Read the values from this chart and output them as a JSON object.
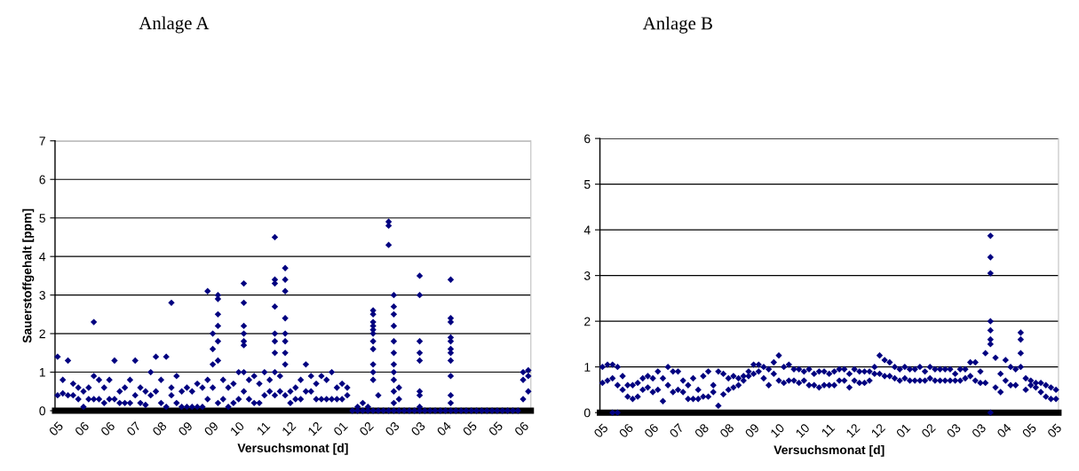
{
  "chart_data": [
    {
      "type": "scatter",
      "title": "Anlage A",
      "xlabel": "Versuchsmonat [d]",
      "ylabel": "Sauerstoffgehalt [ppm]",
      "marker": "diamond",
      "grid": "y",
      "ylim": [
        0,
        7
      ],
      "yticks": [
        0,
        1,
        2,
        3,
        4,
        5,
        6,
        7
      ],
      "categories": [
        "05",
        null,
        null,
        null,
        null,
        "06",
        null,
        null,
        null,
        null,
        "06",
        null,
        null,
        null,
        null,
        "07",
        null,
        null,
        null,
        null,
        "08",
        null,
        null,
        null,
        null,
        "09",
        null,
        null,
        null,
        null,
        "09",
        null,
        null,
        null,
        null,
        "10",
        null,
        null,
        null,
        null,
        "11",
        null,
        null,
        null,
        null,
        "12",
        null,
        null,
        null,
        null,
        "12",
        null,
        null,
        null,
        null,
        "01",
        null,
        null,
        null,
        null,
        "02",
        null,
        null,
        null,
        null,
        "03",
        null,
        null,
        null,
        null,
        "03",
        null,
        null,
        null,
        null,
        "04",
        null,
        null,
        null,
        null,
        "05",
        null,
        null,
        null,
        null,
        "05",
        null,
        null,
        null,
        null,
        "06",
        null
      ],
      "series": [
        {
          "color": "#000080",
          "values": [
            0.4,
            0.45,
            0.4,
            0.4,
            0.3,
            0.1,
            0.3,
            0.3,
            0.3,
            0.2,
            0.3,
            0.3,
            0.2,
            0.2,
            0.2,
            0.4,
            0.2,
            0.15,
            0.4,
            0.5,
            0.2,
            0.1,
            0.4,
            0.2,
            0.1,
            0.1,
            0.1,
            0.1,
            0.1,
            0.3,
            0.6,
            0.2,
            0.3,
            0.1,
            0.2,
            0.3,
            0.5,
            0.3,
            0.2,
            0.2,
            0.4,
            0.5,
            0.4,
            0.5,
            0.4,
            0.2,
            0.3,
            0.3,
            0.5,
            0.5,
            0.3,
            0.3,
            0.3,
            0.3,
            0.3,
            0.3,
            0.4,
            0,
            0,
            0,
            0,
            0,
            0,
            0,
            0,
            0,
            0,
            0,
            0,
            0,
            0,
            0,
            0,
            0,
            0,
            0,
            0,
            0,
            0,
            0,
            0,
            0,
            0,
            0,
            0,
            0,
            0,
            0,
            0,
            0,
            0.3,
            0.5
          ]
        },
        {
          "color": "#000080",
          "values": [
            1.4,
            0.8,
            1.3,
            0.7,
            0.6,
            0.5,
            0.6,
            0.9,
            0.8,
            0.6,
            0.8,
            1.3,
            0.5,
            0.6,
            0.8,
            1.3,
            0.6,
            0.5,
            1.0,
            1.4,
            0.8,
            1.4,
            0.6,
            0.9,
            0.5,
            0.6,
            0.5,
            0.7,
            0.6,
            0.8,
            2.0,
            1.3,
            0.8,
            0.6,
            0.7,
            1.0,
            1.0,
            0.8,
            0.9,
            0.7,
            1.0,
            0.8,
            1.0,
            0.9,
            1.2,
            0.5,
            0.6,
            0.8,
            1.2,
            0.9,
            0.7,
            0.9,
            0.8,
            1.0,
            0.6,
            0.7,
            0.6,
            null,
            0.1,
            0.2,
            0.1,
            1.6,
            0.4,
            null,
            4.3,
            1.8,
            0.6,
            null,
            null,
            null,
            3.5,
            null,
            null,
            null,
            null,
            null,
            3.4,
            null,
            null,
            null,
            null,
            null,
            null,
            null,
            null,
            null,
            null,
            null,
            null,
            null,
            1.0,
            1.05
          ]
        },
        {
          "color": "#000080",
          "values": [
            null,
            null,
            null,
            null,
            null,
            null,
            null,
            2.3,
            null,
            null,
            null,
            null,
            null,
            null,
            null,
            null,
            null,
            null,
            null,
            null,
            null,
            null,
            2.8,
            null,
            null,
            null,
            null,
            null,
            null,
            3.1,
            1.6,
            3.0,
            null,
            null,
            null,
            null,
            3.3,
            null,
            null,
            null,
            null,
            null,
            4.5,
            null,
            3.7,
            null,
            null,
            null,
            null,
            null,
            null,
            null,
            null,
            null,
            null,
            null,
            null,
            null,
            null,
            null,
            null,
            2.6,
            null,
            null,
            4.9,
            3.0,
            0.3,
            null,
            null,
            null,
            3.0,
            null,
            null,
            null,
            null,
            null,
            2.4,
            null,
            null,
            null,
            null,
            null,
            null,
            null,
            null,
            null,
            null,
            null,
            null,
            null,
            0.8,
            0.9
          ]
        },
        {
          "color": "#000080",
          "values": [
            null,
            null,
            null,
            null,
            null,
            null,
            null,
            null,
            null,
            null,
            null,
            null,
            null,
            null,
            null,
            null,
            null,
            null,
            null,
            null,
            null,
            null,
            null,
            null,
            null,
            null,
            null,
            null,
            null,
            null,
            1.2,
            2.9,
            null,
            null,
            null,
            null,
            2.8,
            null,
            null,
            null,
            null,
            null,
            3.4,
            null,
            3.4,
            null,
            null,
            null,
            null,
            null,
            null,
            null,
            null,
            null,
            null,
            null,
            null,
            null,
            null,
            null,
            null,
            2.5,
            null,
            null,
            4.8,
            2.7,
            null,
            null,
            null,
            null,
            1.8,
            null,
            null,
            null,
            null,
            null,
            2.3,
            null,
            null,
            null,
            null,
            null,
            null,
            null,
            null,
            null,
            null,
            null,
            null,
            null,
            null,
            null
          ]
        },
        {
          "color": "#000080",
          "values": [
            null,
            null,
            null,
            null,
            null,
            null,
            null,
            null,
            null,
            null,
            null,
            null,
            null,
            null,
            null,
            null,
            null,
            null,
            null,
            null,
            null,
            null,
            null,
            null,
            null,
            null,
            null,
            null,
            null,
            null,
            null,
            2.5,
            null,
            null,
            null,
            null,
            2.2,
            null,
            null,
            null,
            null,
            null,
            3.3,
            null,
            3.1,
            null,
            null,
            null,
            null,
            null,
            null,
            null,
            null,
            null,
            null,
            null,
            null,
            null,
            null,
            null,
            null,
            2.3,
            null,
            null,
            null,
            2.5,
            null,
            null,
            null,
            null,
            1.5,
            null,
            null,
            null,
            null,
            null,
            1.9,
            null,
            null,
            null,
            null,
            null,
            null,
            null,
            null,
            null,
            null,
            null,
            null,
            null,
            null,
            null
          ]
        },
        {
          "color": "#000080",
          "values": [
            null,
            null,
            null,
            null,
            null,
            null,
            null,
            null,
            null,
            null,
            null,
            null,
            null,
            null,
            null,
            null,
            null,
            null,
            null,
            null,
            null,
            null,
            null,
            null,
            null,
            null,
            null,
            null,
            null,
            null,
            null,
            2.2,
            null,
            null,
            null,
            null,
            2.0,
            null,
            null,
            null,
            null,
            null,
            2.7,
            null,
            2.4,
            null,
            null,
            null,
            null,
            null,
            null,
            null,
            null,
            null,
            null,
            null,
            null,
            null,
            null,
            null,
            null,
            2.2,
            null,
            null,
            null,
            2.2,
            null,
            null,
            null,
            null,
            1.3,
            null,
            null,
            null,
            null,
            null,
            1.8,
            null,
            null,
            null,
            null,
            null,
            null,
            null,
            null,
            null,
            null,
            null,
            null,
            null,
            null,
            null
          ]
        },
        {
          "color": "#000080",
          "values": [
            null,
            null,
            null,
            null,
            null,
            null,
            null,
            null,
            null,
            null,
            null,
            null,
            null,
            null,
            null,
            null,
            null,
            null,
            null,
            null,
            null,
            null,
            null,
            null,
            null,
            null,
            null,
            null,
            null,
            null,
            null,
            1.8,
            null,
            null,
            null,
            null,
            1.8,
            null,
            null,
            null,
            null,
            null,
            2.0,
            null,
            2.0,
            null,
            null,
            null,
            null,
            null,
            null,
            null,
            null,
            null,
            null,
            null,
            null,
            null,
            null,
            null,
            null,
            2.1,
            null,
            null,
            null,
            1.5,
            null,
            null,
            null,
            null,
            0.5,
            null,
            null,
            null,
            null,
            null,
            1.6,
            null,
            null,
            null,
            null,
            null,
            null,
            null,
            null,
            null,
            null,
            null,
            null,
            null,
            null,
            null
          ]
        },
        {
          "color": "#000080",
          "values": [
            null,
            null,
            null,
            null,
            null,
            null,
            null,
            null,
            null,
            null,
            null,
            null,
            null,
            null,
            null,
            null,
            null,
            null,
            null,
            null,
            null,
            null,
            null,
            null,
            null,
            null,
            null,
            null,
            null,
            null,
            null,
            null,
            null,
            null,
            null,
            null,
            1.7,
            null,
            null,
            null,
            null,
            null,
            1.8,
            null,
            1.8,
            null,
            null,
            null,
            null,
            null,
            null,
            null,
            null,
            null,
            null,
            null,
            null,
            null,
            null,
            null,
            null,
            2.0,
            null,
            null,
            null,
            1.2,
            null,
            null,
            null,
            null,
            0.4,
            null,
            null,
            null,
            null,
            null,
            1.5,
            null,
            null,
            null,
            null,
            null,
            null,
            null,
            null,
            null,
            null,
            null,
            null,
            null,
            null,
            null
          ]
        },
        {
          "color": "#000080",
          "values": [
            null,
            null,
            null,
            null,
            null,
            null,
            null,
            null,
            null,
            null,
            null,
            null,
            null,
            null,
            null,
            null,
            null,
            null,
            null,
            null,
            null,
            null,
            null,
            null,
            null,
            null,
            null,
            null,
            null,
            null,
            null,
            null,
            null,
            null,
            null,
            null,
            null,
            null,
            null,
            null,
            null,
            null,
            1.5,
            null,
            1.5,
            null,
            null,
            null,
            null,
            null,
            null,
            null,
            null,
            null,
            null,
            null,
            null,
            null,
            null,
            null,
            null,
            1.8,
            null,
            null,
            null,
            1.0,
            null,
            null,
            null,
            null,
            0.1,
            null,
            null,
            null,
            null,
            null,
            1.3,
            null,
            null,
            null,
            null,
            null,
            null,
            null,
            null,
            null,
            null,
            null,
            null,
            null,
            null,
            null
          ]
        },
        {
          "color": "#000080",
          "values": [
            null,
            null,
            null,
            null,
            null,
            null,
            null,
            null,
            null,
            null,
            null,
            null,
            null,
            null,
            null,
            null,
            null,
            null,
            null,
            null,
            null,
            null,
            null,
            null,
            null,
            null,
            null,
            null,
            null,
            null,
            null,
            null,
            null,
            null,
            null,
            null,
            null,
            null,
            null,
            null,
            null,
            null,
            null,
            null,
            null,
            null,
            null,
            null,
            null,
            null,
            null,
            null,
            null,
            null,
            null,
            null,
            null,
            null,
            null,
            null,
            null,
            1.2,
            null,
            null,
            null,
            0.8,
            null,
            null,
            null,
            null,
            null,
            null,
            null,
            null,
            null,
            null,
            0.9,
            null,
            null,
            null,
            null,
            null,
            null,
            null,
            null,
            null,
            null,
            null,
            null,
            null,
            null,
            null
          ]
        },
        {
          "color": "#000080",
          "values": [
            null,
            null,
            null,
            null,
            null,
            null,
            null,
            null,
            null,
            null,
            null,
            null,
            null,
            null,
            null,
            null,
            null,
            null,
            null,
            null,
            null,
            null,
            null,
            null,
            null,
            null,
            null,
            null,
            null,
            null,
            null,
            null,
            null,
            null,
            null,
            null,
            null,
            null,
            null,
            null,
            null,
            null,
            null,
            null,
            null,
            null,
            null,
            null,
            null,
            null,
            null,
            null,
            null,
            null,
            null,
            null,
            null,
            null,
            null,
            null,
            null,
            1.0,
            null,
            null,
            null,
            0.5,
            null,
            null,
            null,
            null,
            null,
            null,
            null,
            null,
            null,
            null,
            0.4,
            null,
            null,
            null,
            null,
            null,
            null,
            null,
            null,
            null,
            null,
            null,
            null,
            null,
            null,
            null
          ]
        },
        {
          "color": "#000080",
          "values": [
            null,
            null,
            null,
            null,
            null,
            null,
            null,
            null,
            null,
            null,
            null,
            null,
            null,
            null,
            null,
            null,
            null,
            null,
            null,
            null,
            null,
            null,
            null,
            null,
            null,
            null,
            null,
            null,
            null,
            null,
            null,
            null,
            null,
            null,
            null,
            null,
            null,
            null,
            null,
            null,
            null,
            null,
            null,
            null,
            null,
            null,
            null,
            null,
            null,
            null,
            null,
            null,
            null,
            null,
            null,
            null,
            null,
            null,
            null,
            null,
            null,
            0.8,
            null,
            null,
            null,
            0.2,
            null,
            null,
            null,
            null,
            null,
            null,
            null,
            null,
            null,
            null,
            0.2,
            null,
            null,
            null,
            null,
            null,
            null,
            null,
            null,
            null,
            null,
            null,
            null,
            null,
            null,
            null
          ]
        }
      ]
    },
    {
      "type": "scatter",
      "title": "Anlage B",
      "xlabel": "Versuchsmonat [d]",
      "marker": "diamond",
      "grid": "y",
      "ylim": [
        0,
        6
      ],
      "yticks": [
        0,
        1,
        2,
        3,
        4,
        5,
        6
      ],
      "categories": [
        "05",
        null,
        null,
        null,
        null,
        "06",
        null,
        null,
        null,
        null,
        "06",
        null,
        null,
        null,
        null,
        "07",
        null,
        null,
        null,
        null,
        "08",
        null,
        null,
        null,
        null,
        "08",
        null,
        null,
        null,
        null,
        "09",
        null,
        null,
        null,
        null,
        "10",
        null,
        null,
        null,
        null,
        "10",
        null,
        null,
        null,
        null,
        "11",
        null,
        null,
        null,
        null,
        "12",
        null,
        null,
        null,
        null,
        "12",
        null,
        null,
        null,
        null,
        "01",
        null,
        null,
        null,
        null,
        "02",
        null,
        null,
        null,
        null,
        "03",
        null,
        null,
        null,
        null,
        "03",
        null,
        null,
        null,
        null,
        "04",
        null,
        null,
        null,
        null,
        "05",
        null,
        null,
        null,
        null,
        "05"
      ],
      "series": [
        {
          "color": "#000080",
          "values": [
            0.65,
            0.7,
            0.75,
            0.6,
            0.5,
            0.35,
            0.3,
            0.35,
            0.5,
            0.55,
            0.45,
            0.5,
            0.25,
            0.6,
            0.45,
            0.5,
            0.45,
            0.3,
            0.3,
            0.3,
            0.35,
            0.35,
            0.45,
            0.15,
            0.4,
            0.5,
            0.55,
            0.6,
            0.7,
            0.8,
            0.85,
            0.9,
            0.75,
            0.6,
            0.85,
            0.7,
            0.65,
            0.7,
            0.7,
            0.65,
            0.7,
            0.6,
            0.6,
            0.55,
            0.6,
            0.6,
            0.6,
            0.7,
            0.7,
            0.55,
            0.7,
            0.65,
            0.65,
            0.7,
            0.85,
            0.85,
            0.8,
            0.8,
            0.75,
            0.7,
            0.75,
            0.7,
            0.7,
            0.7,
            0.7,
            0.75,
            0.7,
            0.7,
            0.7,
            0.7,
            0.7,
            0.7,
            0.75,
            0.8,
            0.7,
            0.65,
            0.65,
            1.5,
            0.55,
            0.45,
            0.7,
            0.6,
            0.6,
            1.0,
            0.5,
            0.6,
            0.55,
            0.45,
            0.35,
            0.3,
            0.3
          ]
        },
        {
          "color": "#000080",
          "values": [
            1.0,
            1.05,
            1.05,
            1.0,
            0.8,
            0.6,
            0.6,
            0.65,
            0.75,
            0.8,
            0.75,
            0.9,
            0.75,
            1.0,
            0.9,
            0.9,
            0.7,
            0.6,
            0.75,
            0.5,
            0.8,
            0.9,
            0.6,
            0.9,
            0.85,
            0.75,
            0.8,
            0.75,
            0.8,
            0.9,
            1.05,
            1.05,
            1.0,
            0.95,
            1.1,
            1.25,
            1.0,
            1.05,
            0.95,
            0.95,
            0.9,
            0.95,
            0.85,
            0.9,
            0.9,
            0.85,
            0.9,
            0.95,
            0.95,
            0.85,
            0.95,
            0.9,
            0.9,
            0.9,
            1.0,
            1.25,
            1.15,
            1.1,
            1.0,
            0.95,
            1.0,
            0.95,
            0.95,
            1.0,
            0.9,
            1.0,
            0.95,
            0.95,
            0.95,
            0.95,
            0.85,
            0.95,
            0.95,
            1.1,
            1.1,
            0.9,
            1.3,
            2.0,
            1.2,
            0.85,
            1.15,
            1.0,
            0.95,
            1.75,
            0.75,
            0.7,
            0.65,
            0.65,
            0.6,
            0.55,
            0.5
          ]
        },
        {
          "color": "#000080",
          "values": [
            null,
            null,
            0.0,
            0.0,
            null,
            null,
            null,
            null,
            null,
            null,
            null,
            null,
            null,
            null,
            null,
            null,
            null,
            null,
            null,
            null,
            null,
            null,
            null,
            null,
            null,
            null,
            null,
            null,
            null,
            null,
            null,
            null,
            null,
            null,
            null,
            null,
            null,
            null,
            null,
            null,
            null,
            null,
            null,
            null,
            null,
            null,
            null,
            null,
            null,
            null,
            null,
            null,
            null,
            null,
            null,
            null,
            null,
            null,
            null,
            null,
            null,
            null,
            null,
            null,
            null,
            null,
            null,
            null,
            null,
            null,
            null,
            null,
            null,
            null,
            null,
            null,
            null,
            3.87,
            null,
            null,
            null,
            null,
            null,
            1.6,
            null,
            null,
            null,
            null,
            null,
            null,
            null
          ]
        },
        {
          "color": "#000080",
          "values": [
            null,
            null,
            null,
            null,
            null,
            null,
            null,
            null,
            null,
            null,
            null,
            null,
            null,
            null,
            null,
            null,
            null,
            null,
            null,
            null,
            null,
            null,
            null,
            null,
            null,
            null,
            null,
            null,
            null,
            null,
            null,
            null,
            null,
            null,
            null,
            null,
            null,
            null,
            null,
            null,
            null,
            null,
            null,
            null,
            null,
            null,
            null,
            null,
            null,
            null,
            null,
            null,
            null,
            null,
            null,
            null,
            null,
            null,
            null,
            null,
            null,
            null,
            null,
            null,
            null,
            null,
            null,
            null,
            null,
            null,
            null,
            null,
            null,
            null,
            null,
            null,
            null,
            3.4,
            null,
            null,
            null,
            null,
            null,
            1.3,
            null,
            null,
            null,
            null,
            null,
            null,
            null
          ]
        },
        {
          "color": "#000080",
          "values": [
            null,
            null,
            null,
            null,
            null,
            null,
            null,
            null,
            null,
            null,
            null,
            null,
            null,
            null,
            null,
            null,
            null,
            null,
            null,
            null,
            null,
            null,
            null,
            null,
            null,
            null,
            null,
            null,
            null,
            null,
            null,
            null,
            null,
            null,
            null,
            null,
            null,
            null,
            null,
            null,
            null,
            null,
            null,
            null,
            null,
            null,
            null,
            null,
            null,
            null,
            null,
            null,
            null,
            null,
            null,
            null,
            null,
            null,
            null,
            null,
            null,
            null,
            null,
            null,
            null,
            null,
            null,
            null,
            null,
            null,
            null,
            null,
            null,
            null,
            null,
            null,
            null,
            3.05,
            null,
            null,
            null,
            null,
            null,
            null,
            null,
            null,
            null,
            null,
            null,
            null,
            null
          ]
        },
        {
          "color": "#000080",
          "values": [
            null,
            null,
            null,
            null,
            null,
            null,
            null,
            null,
            null,
            null,
            null,
            null,
            null,
            null,
            null,
            null,
            null,
            null,
            null,
            null,
            null,
            null,
            null,
            null,
            null,
            null,
            null,
            null,
            null,
            null,
            null,
            null,
            null,
            null,
            null,
            null,
            null,
            null,
            null,
            null,
            null,
            null,
            null,
            null,
            null,
            null,
            null,
            null,
            null,
            null,
            null,
            null,
            null,
            null,
            null,
            null,
            null,
            null,
            null,
            null,
            null,
            null,
            null,
            null,
            null,
            null,
            null,
            null,
            null,
            null,
            null,
            null,
            null,
            null,
            null,
            null,
            null,
            1.8,
            null,
            null,
            null,
            null,
            null,
            null,
            null,
            null,
            null,
            null,
            null,
            null,
            null
          ]
        },
        {
          "color": "#000080",
          "values": [
            null,
            null,
            null,
            null,
            null,
            null,
            null,
            null,
            null,
            null,
            null,
            null,
            null,
            null,
            null,
            null,
            null,
            null,
            null,
            null,
            null,
            null,
            null,
            null,
            null,
            null,
            null,
            null,
            null,
            null,
            null,
            null,
            null,
            null,
            null,
            null,
            null,
            null,
            null,
            null,
            null,
            null,
            null,
            null,
            null,
            null,
            null,
            null,
            null,
            null,
            null,
            null,
            null,
            null,
            null,
            null,
            null,
            null,
            null,
            null,
            null,
            null,
            null,
            null,
            null,
            null,
            null,
            null,
            null,
            null,
            null,
            null,
            null,
            null,
            null,
            null,
            null,
            1.6,
            null,
            null,
            null,
            null,
            null,
            null,
            null,
            null,
            null,
            null,
            null,
            null,
            null
          ]
        },
        {
          "color": "#000080",
          "values": [
            null,
            null,
            null,
            null,
            null,
            null,
            null,
            null,
            null,
            null,
            null,
            null,
            null,
            null,
            null,
            null,
            null,
            null,
            null,
            null,
            null,
            null,
            null,
            null,
            null,
            null,
            null,
            null,
            null,
            null,
            null,
            null,
            null,
            null,
            null,
            null,
            null,
            null,
            null,
            null,
            null,
            null,
            null,
            null,
            null,
            null,
            null,
            null,
            null,
            null,
            null,
            null,
            null,
            null,
            null,
            null,
            null,
            null,
            null,
            null,
            null,
            null,
            null,
            null,
            null,
            null,
            null,
            null,
            null,
            null,
            null,
            null,
            null,
            null,
            null,
            null,
            null,
            0.0,
            null,
            null,
            null,
            null,
            null,
            null,
            null,
            null,
            null,
            null,
            null,
            null,
            null
          ]
        }
      ]
    }
  ]
}
